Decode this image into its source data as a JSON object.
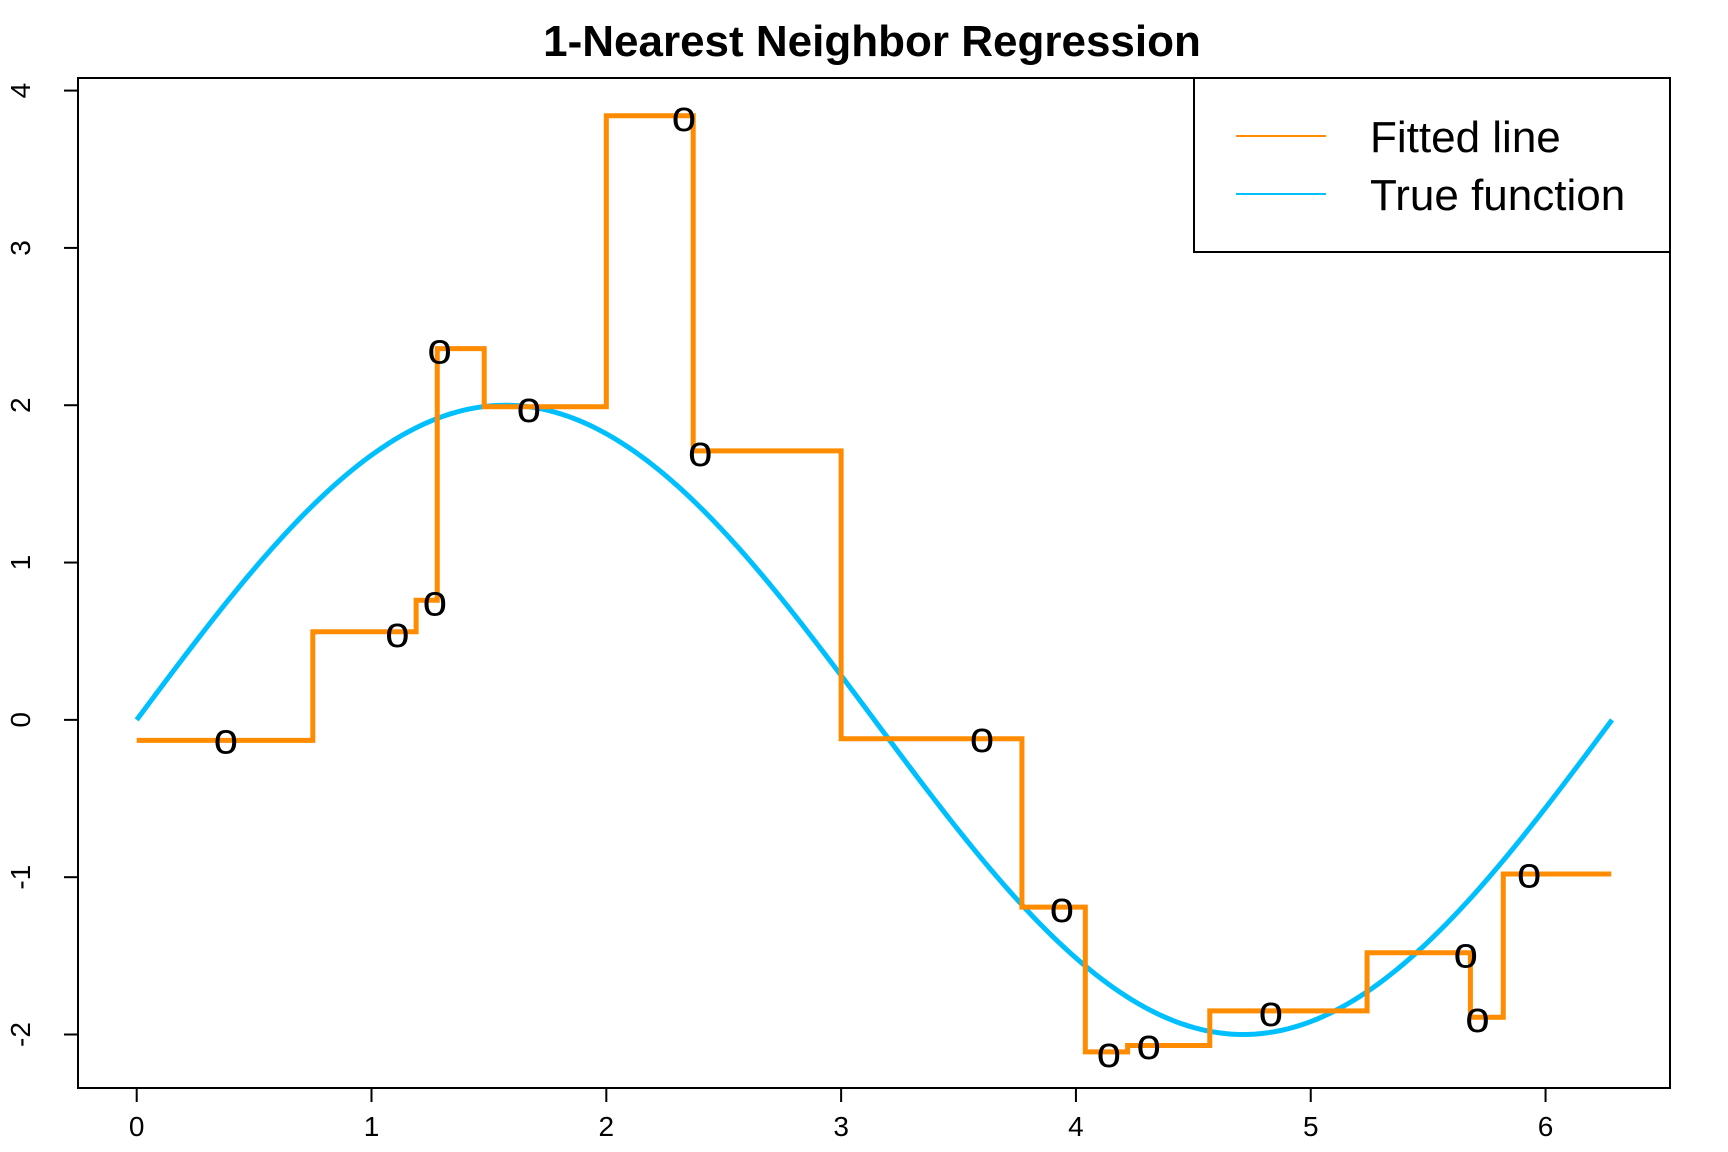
{
  "chart_data": {
    "type": "line",
    "title": "1-Nearest Neighbor Regression",
    "xlabel": "",
    "ylabel": "",
    "xlim": [
      -0.25,
      6.53
    ],
    "ylim": [
      -2.34,
      4.08
    ],
    "x_ticks": [
      0,
      1,
      2,
      3,
      4,
      5,
      6
    ],
    "y_ticks": [
      -2,
      -1,
      0,
      1,
      2,
      3,
      4
    ],
    "x_tick_labels": [
      "0",
      "1",
      "2",
      "3",
      "4",
      "5",
      "6"
    ],
    "y_tick_labels": [
      "-2",
      "-1",
      "0",
      "1",
      "2",
      "3",
      "4"
    ],
    "point_marker": "o",
    "points": [
      {
        "x": 0.38,
        "y": -0.12
      },
      {
        "x": 1.11,
        "y": 0.56
      },
      {
        "x": 1.27,
        "y": 0.76
      },
      {
        "x": 1.29,
        "y": 2.36
      },
      {
        "x": 1.67,
        "y": 1.99
      },
      {
        "x": 2.33,
        "y": 3.84
      },
      {
        "x": 2.4,
        "y": 1.71
      },
      {
        "x": 3.6,
        "y": -0.11
      },
      {
        "x": 3.94,
        "y": -1.19
      },
      {
        "x": 4.14,
        "y": -2.11
      },
      {
        "x": 4.31,
        "y": -2.06
      },
      {
        "x": 4.83,
        "y": -1.85
      },
      {
        "x": 5.66,
        "y": -1.48
      },
      {
        "x": 5.71,
        "y": -1.89
      },
      {
        "x": 5.93,
        "y": -0.97
      }
    ],
    "series": [
      {
        "name": "Fitted line",
        "color": "#FF8C00",
        "kind": "step",
        "x": [
          0,
          0.75,
          0.75,
          1.19,
          1.19,
          1.28,
          1.28,
          1.48,
          1.48,
          2.0,
          2.0,
          2.37,
          2.37,
          3.0,
          3.0,
          3.77,
          3.77,
          4.04,
          4.04,
          4.22,
          4.22,
          4.57,
          4.57,
          5.24,
          5.24,
          5.68,
          5.68,
          5.82,
          5.82,
          6.28
        ],
        "y": [
          -0.13,
          -0.13,
          0.56,
          0.56,
          0.76,
          0.76,
          2.36,
          2.36,
          1.99,
          1.99,
          3.84,
          3.84,
          1.71,
          1.71,
          -0.12,
          -0.12,
          -1.19,
          -1.19,
          -2.11,
          -2.11,
          -2.07,
          -2.07,
          -1.85,
          -1.85,
          -1.48,
          -1.48,
          -1.89,
          -1.89,
          -0.98,
          -0.98
        ]
      },
      {
        "name": "True function",
        "color": "#00BFFF",
        "kind": "curve",
        "function": "2*sin(x)",
        "x_range": [
          0,
          6.283
        ]
      }
    ],
    "legend": {
      "position": "top-right",
      "entries": [
        "Fitted line",
        "True function"
      ]
    }
  }
}
